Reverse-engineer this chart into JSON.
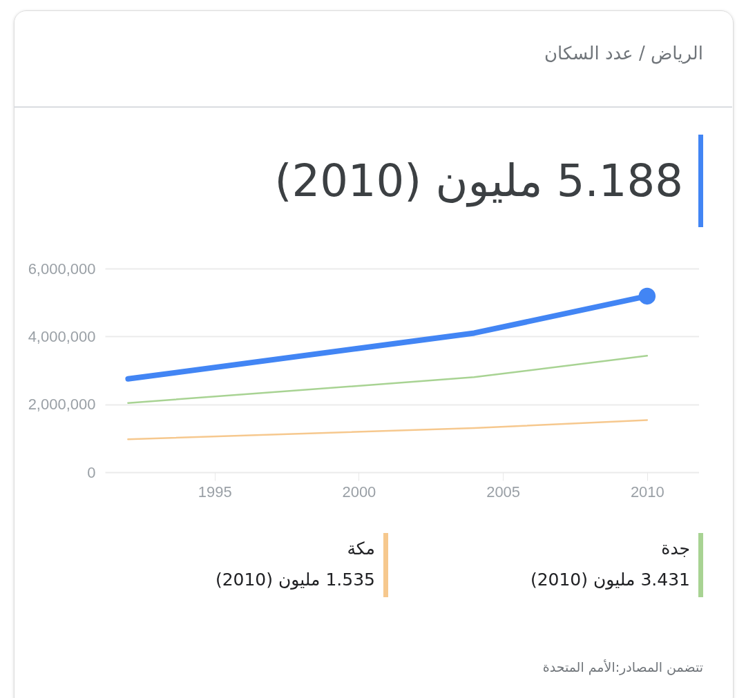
{
  "chart_data": {
    "type": "line",
    "subtitle": "الرياض / عدد السكان",
    "title": "5.188 مليون (2010)",
    "x": [
      1992,
      2004,
      2010
    ],
    "series": [
      {
        "color": "#4285f4",
        "values": [
          2750000,
          4100000,
          5188000
        ]
      },
      {
        "type": "scatter",
        "x": [
          2010
        ],
        "color": "#4285f4",
        "values": [
          5188000
        ],
        "marker": "circle"
      },
      {
        "name": "جدة",
        "color": "#a8d393",
        "values": [
          2040000,
          2800000,
          3431000
        ]
      },
      {
        "name": "مكة",
        "color": "#f6c88e",
        "values": [
          970000,
          1300000,
          1535000
        ]
      }
    ],
    "xlim": [
      1991.2,
      2011.8
    ],
    "xticks": [
      1995,
      2000,
      2005,
      2010
    ],
    "ylim": [
      0,
      6000000
    ],
    "yticks": [
      0,
      {
        "value": 2000000,
        "label": "2,000,000"
      },
      {
        "value": 4000000,
        "label": "4,000,000"
      },
      {
        "value": 6000000,
        "label": "6,000,000"
      }
    ],
    "grid": "y",
    "legend": "bottom",
    "annotations": [
      "3.431 مليون (2010)",
      "1.535 مليون (2010)",
      "تتضمن المصادر:الأمم المتحدة"
    ]
  }
}
